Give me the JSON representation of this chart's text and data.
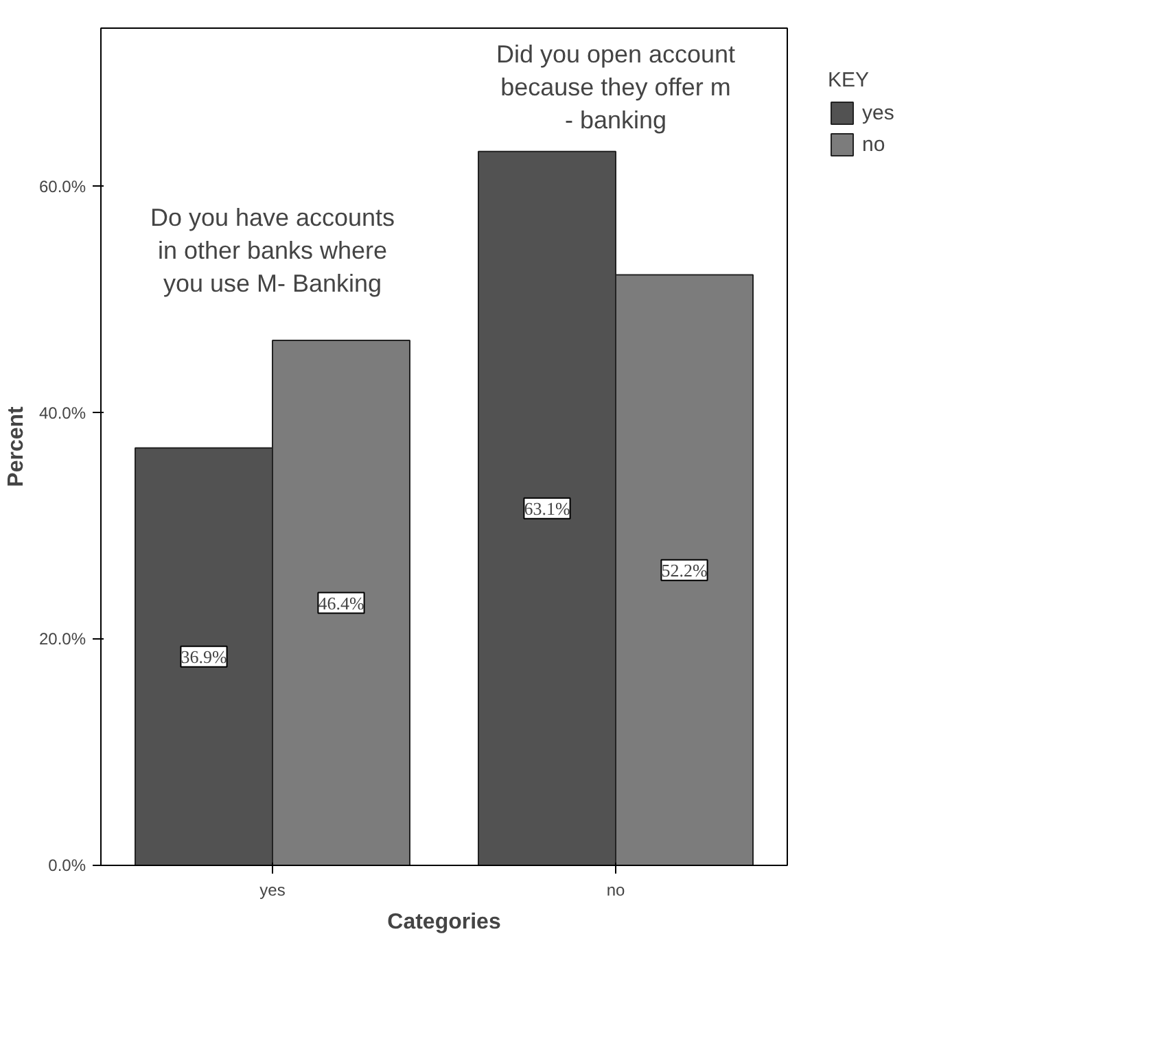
{
  "chart_data": {
    "type": "bar",
    "xlabel": "Categories",
    "ylabel": "Percent",
    "legend_title": "KEY",
    "legend": "top right",
    "categories": [
      "yes",
      "no"
    ],
    "series": [
      {
        "name": "yes",
        "color": "#525252",
        "values": [
          36.9,
          63.1
        ]
      },
      {
        "name": "no",
        "color": "#7c7c7c",
        "values": [
          46.4,
          52.2
        ]
      }
    ],
    "value_labels": [
      [
        "36.9%",
        "63.1%"
      ],
      [
        "46.4%",
        "52.2%"
      ]
    ],
    "ylim": [
      0,
      74
    ],
    "yticks": [
      {
        "value": 0,
        "label": "0.0%"
      },
      {
        "value": 20,
        "label": "20.0%"
      },
      {
        "value": 40,
        "label": "40.0%"
      },
      {
        "value": 60,
        "label": "60.0%"
      }
    ],
    "grid": false,
    "annotations": [
      "Did you open account because they offer m - banking",
      "Do you have accounts in other banks where you use M- Banking"
    ]
  }
}
